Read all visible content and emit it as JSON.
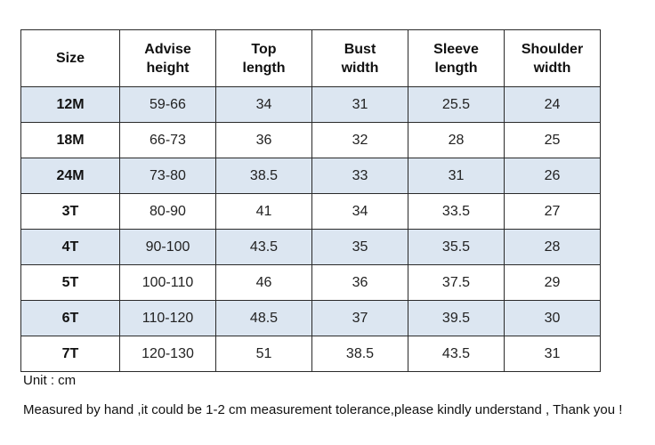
{
  "table": {
    "headers": [
      [
        "Size"
      ],
      [
        "Advise",
        "height"
      ],
      [
        "Top",
        "length"
      ],
      [
        "Bust",
        "width"
      ],
      [
        "Sleeve",
        "length"
      ],
      [
        "Shoulder",
        "width"
      ]
    ],
    "rows": [
      [
        "12M",
        "59-66",
        "34",
        "31",
        "25.5",
        "24"
      ],
      [
        "18M",
        "66-73",
        "36",
        "32",
        "28",
        "25"
      ],
      [
        "24M",
        "73-80",
        "38.5",
        "33",
        "31",
        "26"
      ],
      [
        "3T",
        "80-90",
        "41",
        "34",
        "33.5",
        "27"
      ],
      [
        "4T",
        "90-100",
        "43.5",
        "35",
        "35.5",
        "28"
      ],
      [
        "5T",
        "100-110",
        "46",
        "36",
        "37.5",
        "29"
      ],
      [
        "6T",
        "110-120",
        "48.5",
        "37",
        "39.5",
        "30"
      ],
      [
        "7T",
        "120-130",
        "51",
        "38.5",
        "43.5",
        "31"
      ]
    ]
  },
  "notes": {
    "unit": "Unit : cm",
    "disclaimer": "Measured by hand ,it could be 1-2 cm measurement tolerance,please kindly understand , Thank you !"
  },
  "colors": {
    "shaded_row": "#dce6f1",
    "border": "#2a2a2a"
  }
}
